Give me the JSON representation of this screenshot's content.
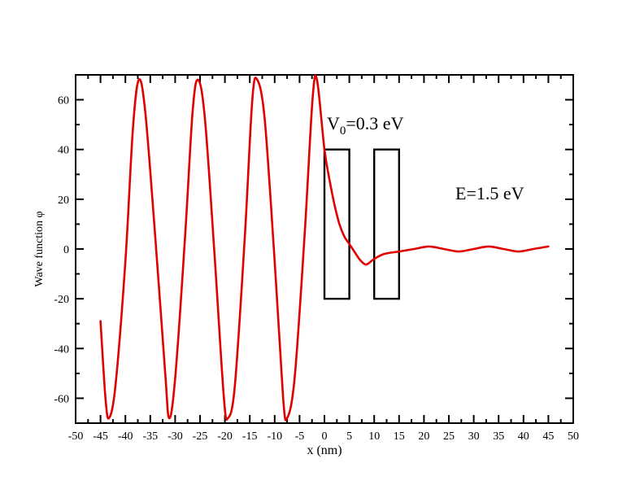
{
  "chart_data": {
    "type": "line",
    "xlabel": "x (nm)",
    "ylabel": "Wave function φ",
    "xlim": [
      -50,
      50
    ],
    "ylim": [
      -70,
      70
    ],
    "grid": false,
    "x_ticks": [
      -50,
      -45,
      -40,
      -35,
      -30,
      -25,
      -20,
      -15,
      -10,
      -5,
      0,
      5,
      10,
      15,
      20,
      25,
      30,
      35,
      40,
      45,
      50
    ],
    "y_ticks": [
      -60,
      -40,
      -20,
      0,
      20,
      40,
      60
    ],
    "annotations": {
      "potential_prefix": "V",
      "potential_subscript": "0",
      "potential_rest": "=0.3 eV",
      "energy": "E=1.5 eV"
    },
    "series": [
      {
        "color": "#e00000",
        "x": [
          -45,
          -44,
          -43.3,
          -42,
          -40,
          -38.5,
          -37.3,
          -36,
          -34,
          -32,
          -31.2,
          -30,
          -28,
          -26.5,
          -25.4,
          -24,
          -22,
          -20.2,
          -19.4,
          -18,
          -16,
          -14.5,
          -13.5,
          -12,
          -10,
          -8.3,
          -7.5,
          -6,
          -4,
          -2.4,
          -1.5,
          0,
          1,
          2,
          3,
          4,
          5,
          6,
          7,
          8,
          8.7,
          10,
          12,
          15,
          18,
          21,
          24,
          27,
          30,
          33,
          36,
          39,
          42,
          45
        ],
        "y": [
          -29,
          -60,
          -68,
          -55,
          -5,
          48,
          68,
          55,
          5,
          -50,
          -68,
          -52,
          5,
          55,
          68,
          52,
          -5,
          -60,
          -68,
          -55,
          5,
          60,
          68,
          52,
          -5,
          -60,
          -68,
          -52,
          5,
          60,
          68,
          40,
          28,
          18,
          10,
          5,
          2,
          -1,
          -4,
          -6,
          -6,
          -4,
          -2,
          -1,
          0,
          1,
          0,
          -1,
          0,
          1,
          0,
          -1,
          0,
          1
        ]
      }
    ],
    "barriers": [
      {
        "x0": 0,
        "x1": 5,
        "y0": -20,
        "y1": 40
      },
      {
        "x0": 10,
        "x1": 15,
        "y0": -20,
        "y1": 40
      }
    ]
  }
}
